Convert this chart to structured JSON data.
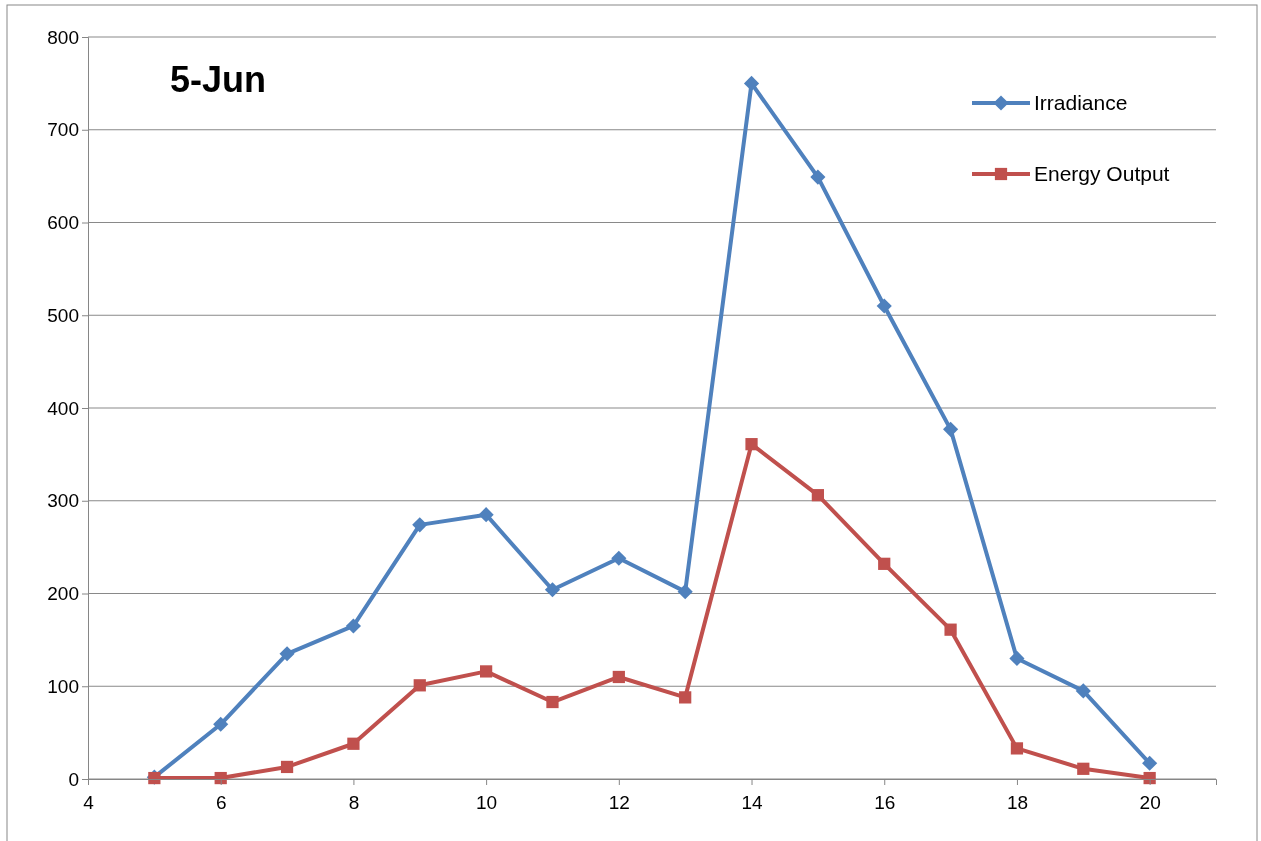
{
  "chart_data": {
    "type": "line",
    "title": "5-Jun",
    "x": [
      5,
      6,
      7,
      8,
      9,
      10,
      11,
      12,
      13,
      14,
      15,
      16,
      17,
      18,
      19,
      20
    ],
    "series": [
      {
        "name": "Irradiance",
        "color": "#4f81bd",
        "marker": "diamond",
        "values": [
          2,
          59,
          135,
          165,
          274,
          285,
          204,
          238,
          202,
          750,
          649,
          510,
          377,
          130,
          95,
          17
        ]
      },
      {
        "name": "Energy Output",
        "color": "#c0504d",
        "marker": "square",
        "values": [
          1,
          1,
          13,
          38,
          101,
          116,
          83,
          110,
          88,
          361,
          306,
          232,
          161,
          33,
          11,
          1
        ]
      }
    ],
    "xlim": [
      4,
      21
    ],
    "xticks": [
      4,
      6,
      8,
      10,
      12,
      14,
      16,
      18,
      20
    ],
    "ylim": [
      0,
      800
    ],
    "yticks": [
      0,
      100,
      200,
      300,
      400,
      500,
      600,
      700,
      800
    ],
    "grid": "y",
    "legend": "top right",
    "line_style": "solid"
  }
}
